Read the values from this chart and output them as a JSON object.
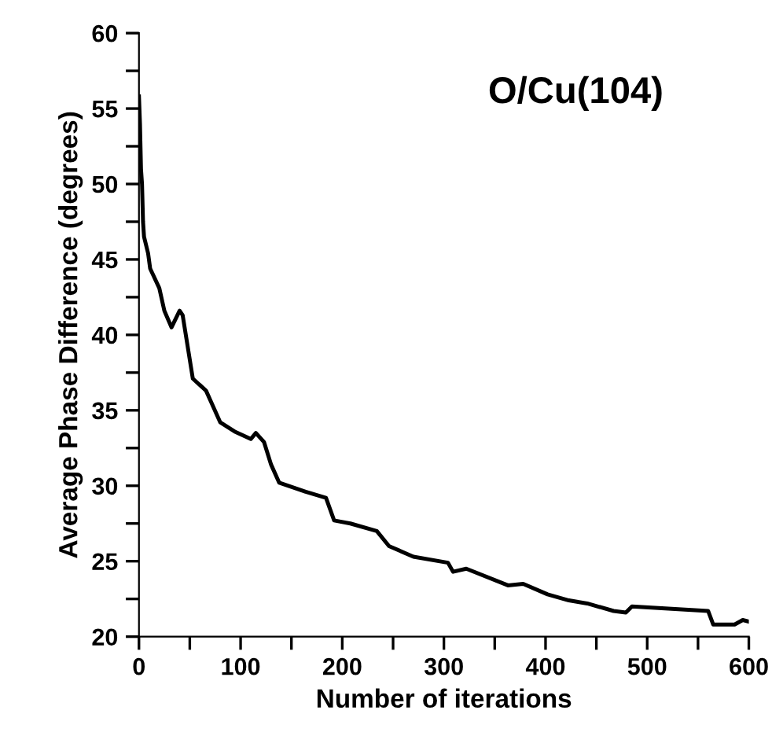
{
  "chart_data": {
    "type": "line",
    "title": "O/Cu(104)",
    "xlabel": "Number of iterations",
    "ylabel": "Average Phase Difference (degrees)",
    "x": [
      0,
      1,
      2,
      3,
      4,
      5,
      9,
      11,
      20,
      25,
      32,
      40,
      43,
      53,
      66,
      80,
      94,
      110,
      115,
      123,
      130,
      138,
      164,
      184,
      192,
      208,
      234,
      246,
      270,
      304,
      309,
      322,
      363,
      378,
      402,
      423,
      441,
      467,
      479,
      485,
      560,
      565,
      586,
      594,
      600
    ],
    "series": [
      {
        "color": "#000000",
        "values": [
          55.8,
          54,
          51,
          50,
          47.5,
          46.5,
          45.4,
          44.4,
          43.1,
          41.6,
          40.5,
          41.6,
          41.3,
          37.1,
          36.3,
          34.2,
          33.6,
          33.1,
          33.5,
          32.9,
          31.4,
          30.2,
          29.6,
          29.2,
          27.7,
          27.5,
          27.0,
          26.0,
          25.3,
          24.9,
          24.3,
          24.5,
          23.4,
          23.5,
          22.8,
          22.4,
          22.2,
          21.7,
          21.6,
          22.0,
          21.7,
          20.8,
          20.8,
          21.1,
          21.0
        ]
      }
    ],
    "xlim": [
      0,
      600
    ],
    "ylim": [
      20,
      60
    ],
    "xticks": [
      0,
      {
        "value": 50,
        "label": null
      },
      100,
      {
        "value": 150,
        "label": null
      },
      200,
      {
        "value": 250,
        "label": null
      },
      300,
      {
        "value": 350,
        "label": null
      },
      400,
      {
        "value": 450,
        "label": null
      },
      500,
      {
        "value": 550,
        "label": null
      },
      600
    ],
    "yticks": [
      20,
      {
        "value": 22.5,
        "label": null
      },
      25,
      {
        "value": 27.5,
        "label": null
      },
      30,
      {
        "value": 32.5,
        "label": null
      },
      35,
      {
        "value": 37.5,
        "label": null
      },
      40,
      {
        "value": 42.5,
        "label": null
      },
      45,
      {
        "value": 47.5,
        "label": null
      },
      50,
      {
        "value": 52.5,
        "label": null
      },
      55,
      {
        "value": 57.5,
        "label": null
      },
      60
    ],
    "grid": false,
    "legend": false,
    "marker": "none",
    "line_style": "solid"
  }
}
